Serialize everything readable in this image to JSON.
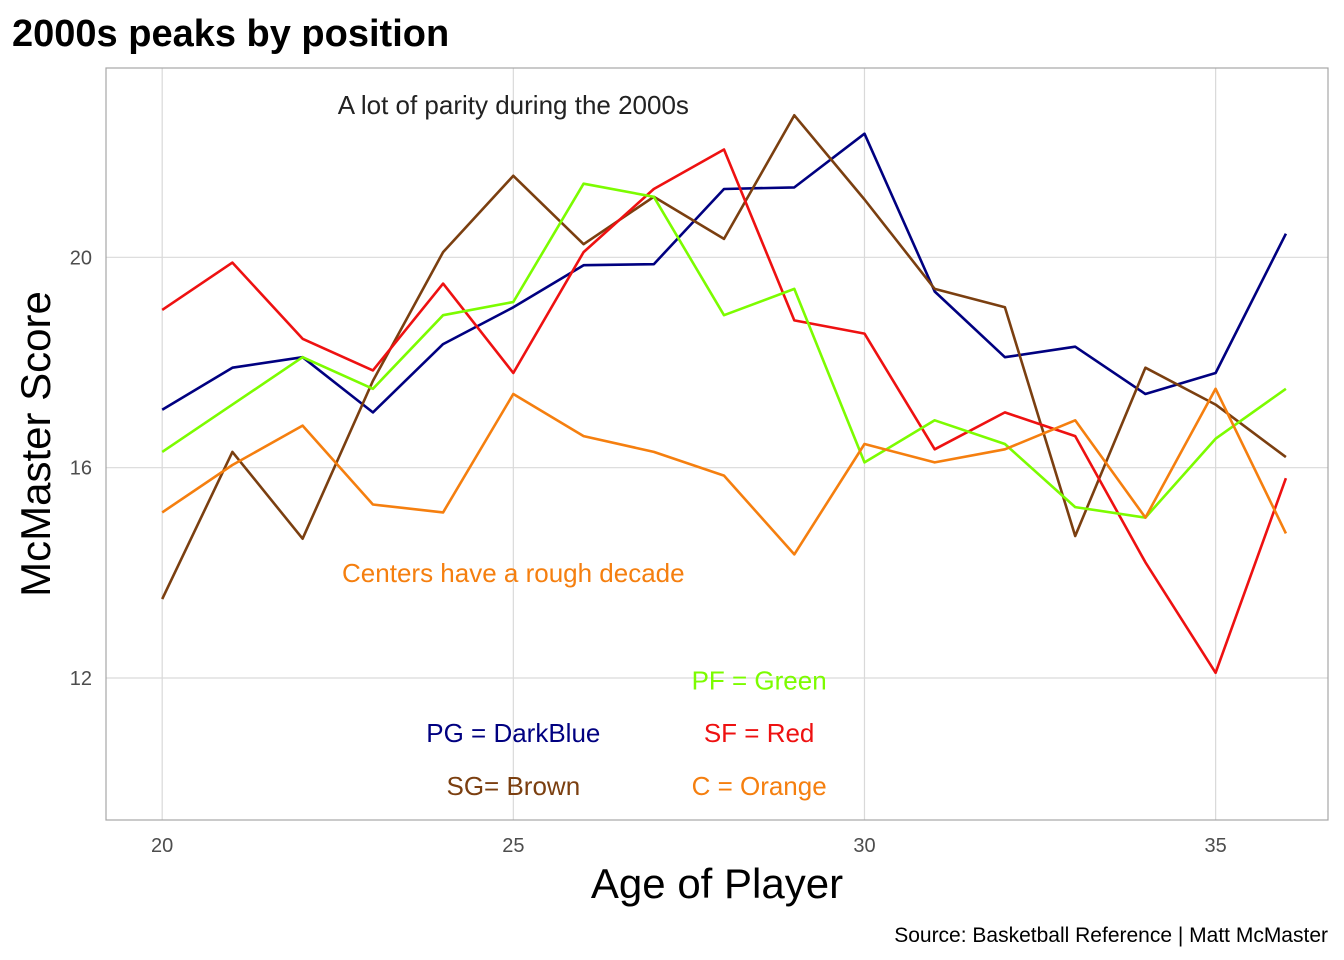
{
  "chart_data": {
    "type": "line",
    "title": "2000s peaks by position",
    "xlabel": "Age of Player",
    "ylabel": "McMaster Score",
    "caption": "Source: Basketball Reference | Matt McMaster",
    "xlim": [
      19.2,
      36.6
    ],
    "ylim": [
      9.3,
      23.6
    ],
    "x_ticks": [
      20,
      25,
      30,
      35
    ],
    "y_ticks": [
      12,
      16,
      20
    ],
    "grid": true,
    "legend": "none",
    "x": [
      20,
      21,
      22,
      23,
      24,
      25,
      26,
      27,
      28,
      29,
      30,
      31,
      32,
      33,
      34,
      35,
      36
    ],
    "series": [
      {
        "key": "PG",
        "color": "#000080",
        "values": [
          17.1,
          17.9,
          18.1,
          17.05,
          18.35,
          19.05,
          19.85,
          19.87,
          21.3,
          21.33,
          22.35,
          19.35,
          18.1,
          18.3,
          17.4,
          17.8,
          20.45
        ]
      },
      {
        "key": "SG",
        "color": "#7B3F10",
        "values": [
          13.5,
          16.3,
          14.65,
          17.65,
          20.1,
          21.55,
          20.25,
          21.15,
          20.35,
          22.7,
          21.1,
          19.4,
          19.05,
          14.7,
          17.9,
          17.2,
          16.2
        ]
      },
      {
        "key": "SF",
        "color": "#EE1111",
        "values": [
          19.0,
          19.9,
          18.45,
          17.85,
          19.5,
          17.8,
          20.1,
          21.3,
          22.05,
          18.8,
          18.55,
          16.35,
          17.05,
          16.6,
          14.2,
          12.1,
          15.8
        ]
      },
      {
        "key": "PF",
        "color": "#7CFC00",
        "values": [
          16.3,
          17.2,
          18.1,
          17.5,
          18.9,
          19.15,
          21.4,
          21.15,
          18.9,
          19.4,
          16.1,
          16.9,
          16.45,
          15.25,
          15.05,
          16.55,
          17.5
        ]
      },
      {
        "key": "C",
        "color": "#F57F0F",
        "values": [
          15.15,
          16.05,
          16.8,
          15.3,
          15.15,
          17.4,
          16.6,
          16.3,
          15.85,
          14.35,
          16.45,
          16.1,
          16.35,
          16.9,
          15.05,
          17.5,
          14.75
        ]
      }
    ],
    "annotations": [
      {
        "text": "A lot of parity during the 2000s",
        "x": 25,
        "y": 22.9,
        "color": "#222222"
      },
      {
        "text": "Centers have a rough decade",
        "x": 25,
        "y": 14.0,
        "color": "#F57F0F"
      },
      {
        "text": "PF = Green",
        "x": 28.5,
        "y": 11.95,
        "color": "#7CFC00"
      },
      {
        "text": "PG = DarkBlue",
        "x": 25,
        "y": 10.95,
        "color": "#000080"
      },
      {
        "text": "SF = Red",
        "x": 28.5,
        "y": 10.95,
        "color": "#EE1111"
      },
      {
        "text": "SG= Brown",
        "x": 25,
        "y": 9.95,
        "color": "#7B3F10"
      },
      {
        "text": "C = Orange",
        "x": 28.5,
        "y": 9.95,
        "color": "#F57F0F"
      }
    ]
  }
}
